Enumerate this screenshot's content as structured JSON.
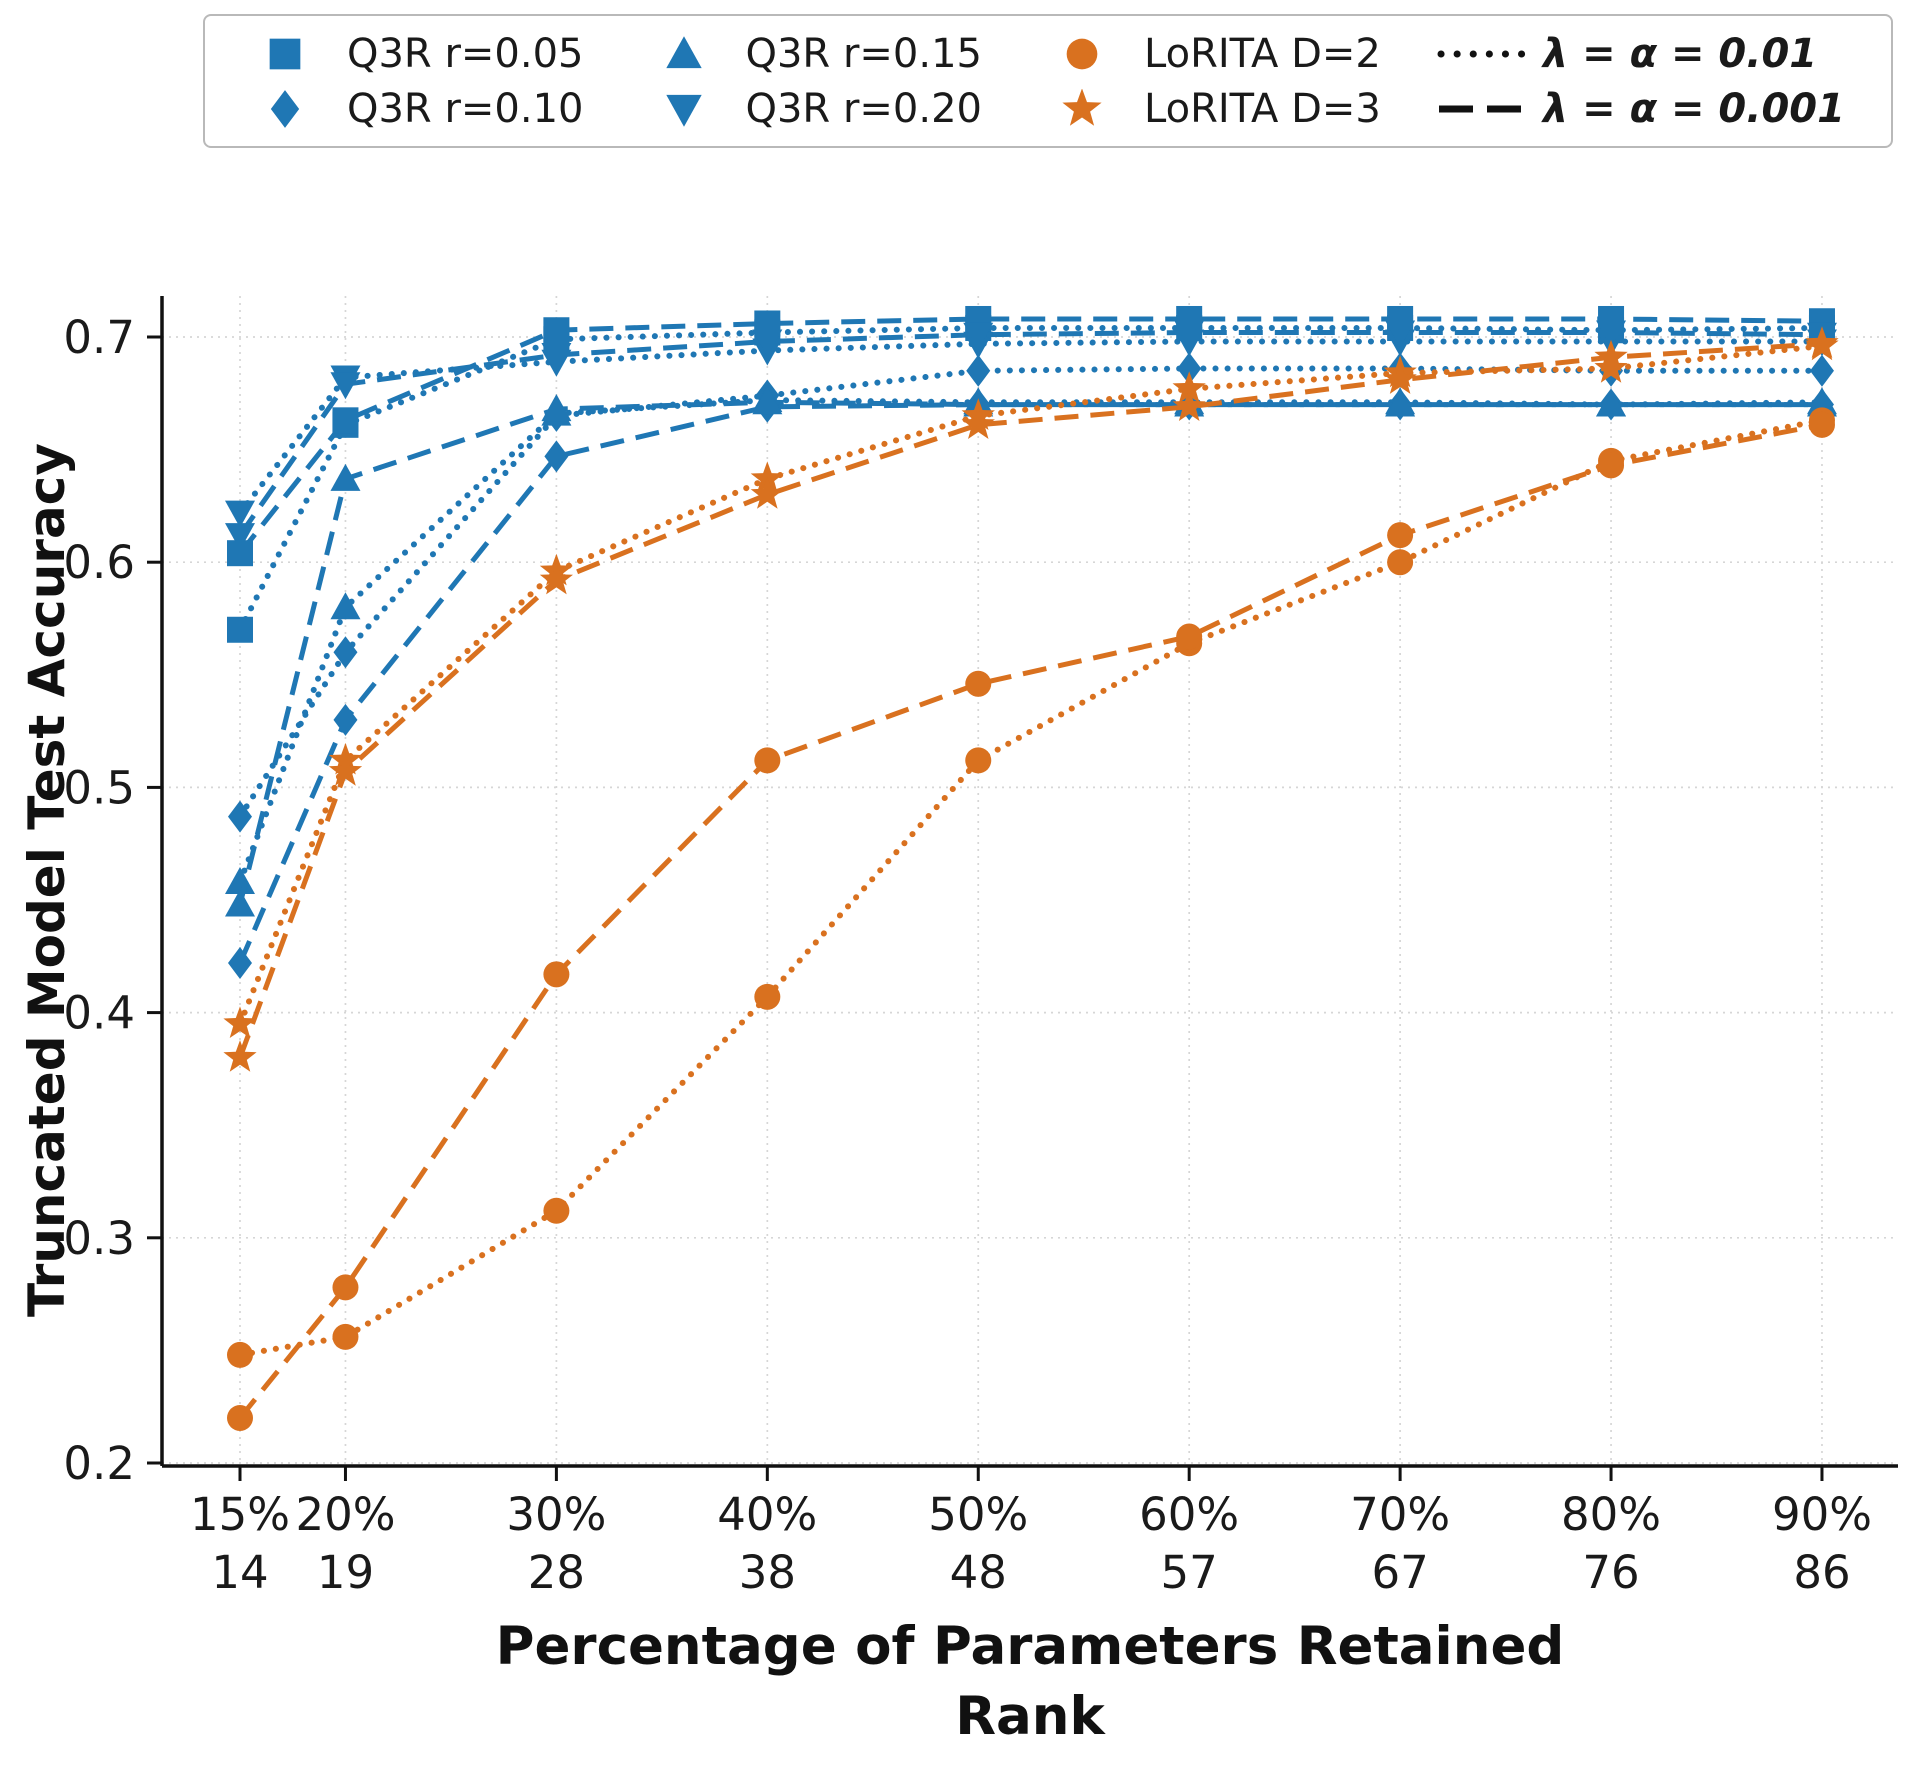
{
  "legend": {
    "entries": [
      {
        "label": "Q3R r=0.05",
        "marker": "square",
        "color": "#1f77b4",
        "bold": false
      },
      {
        "label": "Q3R r=0.10",
        "marker": "diamond",
        "color": "#1f77b4",
        "bold": false
      },
      {
        "label": "Q3R r=0.15",
        "marker": "triangle-up",
        "color": "#1f77b4",
        "bold": false
      },
      {
        "label": "Q3R r=0.20",
        "marker": "triangle-down",
        "color": "#1f77b4",
        "bold": false
      },
      {
        "label": "LoRITA D=2",
        "marker": "circle",
        "color": "#d9711f",
        "bold": false
      },
      {
        "label": "LoRITA D=3",
        "marker": "star",
        "color": "#d9711f",
        "bold": false
      },
      {
        "label": "λ = α = 0.01",
        "marker": "dotted-line",
        "color": "#111111",
        "bold": true
      },
      {
        "label": "λ = α = 0.001",
        "marker": "dashed-line",
        "color": "#111111",
        "bold": true
      }
    ]
  },
  "chart_data": {
    "type": "line",
    "title": "",
    "ylabel": "Truncated Model Test Accuracy",
    "xlabel_line1": "Percentage of Parameters Retained",
    "xlabel_line2": "Rank",
    "grid": true,
    "legend_position": "top",
    "colors": {
      "q3r_blue": "#1f77b4",
      "lorita_orange": "#d9711f"
    },
    "line_style_meaning": {
      "dotted": "λ = α = 0.01",
      "dashed": "λ = α = 0.001"
    },
    "x": [
      15,
      20,
      30,
      40,
      50,
      60,
      70,
      80,
      90
    ],
    "x_tick_labels_percent": [
      "15%",
      "20%",
      "30%",
      "40%",
      "50%",
      "60%",
      "70%",
      "80%",
      "90%"
    ],
    "x_tick_labels_rank": [
      "14",
      "19",
      "28",
      "38",
      "48",
      "57",
      "67",
      "76",
      "86"
    ],
    "y_ticks": [
      0.2,
      0.3,
      0.4,
      0.5,
      0.6,
      0.7
    ],
    "y_tick_labels": [
      "0.2",
      "0.3",
      "0.4",
      "0.5",
      "0.6",
      "0.7"
    ],
    "ylim": [
      0.198,
      0.718
    ],
    "series": [
      {
        "name": "Q3R r=0.05",
        "marker": "square",
        "line": "dotted",
        "color": "#1f77b4",
        "values": [
          0.57,
          0.661,
          0.699,
          0.702,
          0.704,
          0.704,
          0.704,
          0.703,
          0.704
        ]
      },
      {
        "name": "Q3R r=0.05",
        "marker": "square",
        "line": "dashed",
        "color": "#1f77b4",
        "values": [
          0.604,
          0.663,
          0.703,
          0.706,
          0.708,
          0.708,
          0.708,
          0.708,
          0.707
        ]
      },
      {
        "name": "Q3R r=0.10",
        "marker": "diamond",
        "line": "dotted",
        "color": "#1f77b4",
        "values": [
          0.487,
          0.56,
          0.665,
          0.674,
          0.685,
          0.686,
          0.686,
          0.685,
          0.685
        ]
      },
      {
        "name": "Q3R r=0.10",
        "marker": "diamond",
        "line": "dashed",
        "color": "#1f77b4",
        "values": [
          0.422,
          0.53,
          0.647,
          0.669,
          0.67,
          0.67,
          0.67,
          0.67,
          0.67
        ]
      },
      {
        "name": "Q3R r=0.15",
        "marker": "triangle-up",
        "line": "dotted",
        "color": "#1f77b4",
        "values": [
          0.458,
          0.58,
          0.666,
          0.672,
          0.671,
          0.671,
          0.671,
          0.67,
          0.671
        ]
      },
      {
        "name": "Q3R r=0.15",
        "marker": "triangle-up",
        "line": "dashed",
        "color": "#1f77b4",
        "values": [
          0.448,
          0.637,
          0.668,
          0.671,
          0.67,
          0.67,
          0.67,
          0.67,
          0.67
        ]
      },
      {
        "name": "Q3R r=0.20",
        "marker": "triangle-down",
        "line": "dotted",
        "color": "#1f77b4",
        "values": [
          0.622,
          0.682,
          0.689,
          0.694,
          0.697,
          0.698,
          0.698,
          0.698,
          0.698
        ]
      },
      {
        "name": "Q3R r=0.20",
        "marker": "triangle-down",
        "line": "dashed",
        "color": "#1f77b4",
        "values": [
          0.612,
          0.679,
          0.692,
          0.698,
          0.701,
          0.702,
          0.702,
          0.702,
          0.701
        ]
      },
      {
        "name": "LoRITA D=2",
        "marker": "circle",
        "line": "dotted",
        "color": "#d9711f",
        "values": [
          0.248,
          0.256,
          0.312,
          0.407,
          0.512,
          0.564,
          0.6,
          0.645,
          0.663
        ]
      },
      {
        "name": "LoRITA D=2",
        "marker": "circle",
        "line": "dashed",
        "color": "#d9711f",
        "values": [
          0.22,
          0.278,
          0.417,
          0.512,
          0.546,
          0.567,
          0.612,
          0.643,
          0.661
        ]
      },
      {
        "name": "LoRITA D=3",
        "marker": "star",
        "line": "dotted",
        "color": "#d9711f",
        "values": [
          0.395,
          0.512,
          0.596,
          0.637,
          0.665,
          0.677,
          0.684,
          0.686,
          0.696
        ]
      },
      {
        "name": "LoRITA D=3",
        "marker": "star",
        "line": "dashed",
        "color": "#d9711f",
        "values": [
          0.38,
          0.507,
          0.592,
          0.63,
          0.661,
          0.669,
          0.681,
          0.691,
          0.697
        ]
      }
    ]
  }
}
